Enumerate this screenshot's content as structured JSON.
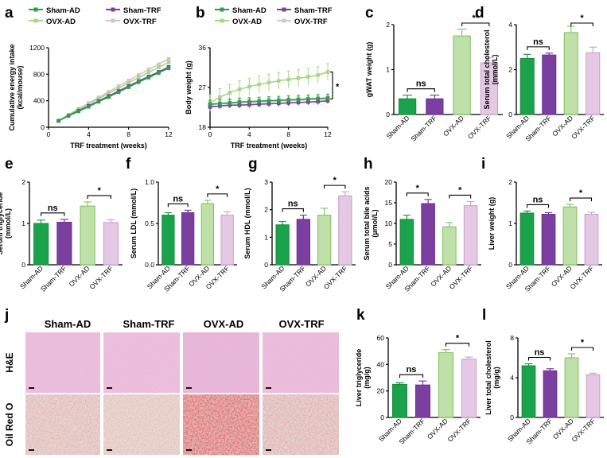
{
  "colors": {
    "sham_ad": "#1aa34a",
    "sham_trf": "#7b3fa0",
    "ovx_ad": "#bfe0a8",
    "ovx_trf": "#e4c8e4",
    "sham_ad_line": "#2e9e4a",
    "sham_trf_line": "#7b3fa0",
    "ovx_ad_line": "#a8d68a",
    "ovx_trf_line": "#d9c3c9"
  },
  "groups": [
    "Sham-AD",
    "Sham-TRF",
    "OVX-AD",
    "OVX-TRF"
  ],
  "legend": {
    "sham_ad": "Sham-AD",
    "sham_trf": "Sham-TRF",
    "ovx_ad": "OVX-AD",
    "ovx_trf": "OVX-TRF"
  },
  "chart_data": [
    {
      "panel": "a",
      "type": "line",
      "xlabel": "TRF treatment (weeks)",
      "ylabel": "Cumulative energy intake (kcal/mouse)",
      "xlim": [
        0,
        12
      ],
      "ylim": [
        0,
        1200
      ],
      "xticks": [
        0,
        4,
        8,
        12
      ],
      "yticks": [
        0,
        400,
        800,
        1200
      ],
      "x": [
        1,
        2,
        3,
        4,
        5,
        6,
        7,
        8,
        9,
        10,
        11,
        12
      ],
      "series": [
        {
          "name": "Sham-AD",
          "key": "sham_ad",
          "values": [
            95,
            170,
            240,
            310,
            385,
            455,
            530,
            605,
            680,
            750,
            820,
            890
          ]
        },
        {
          "name": "Sham-TRF",
          "key": "sham_trf",
          "values": [
            95,
            175,
            250,
            320,
            395,
            470,
            545,
            620,
            695,
            765,
            835,
            910
          ]
        },
        {
          "name": "OVX-AD",
          "key": "ovx_ad",
          "values": [
            100,
            185,
            270,
            350,
            430,
            510,
            590,
            670,
            750,
            830,
            905,
            980
          ]
        },
        {
          "name": "OVX-TRF",
          "key": "ovx_trf",
          "values": [
            100,
            190,
            280,
            365,
            450,
            535,
            620,
            705,
            790,
            870,
            950,
            1030
          ]
        }
      ]
    },
    {
      "panel": "b",
      "type": "line",
      "xlabel": "TRF treatment (weeks)",
      "ylabel": "Body weight (g)",
      "xlim": [
        0,
        12
      ],
      "ylim": [
        18,
        36
      ],
      "xticks": [
        0,
        4,
        8,
        12
      ],
      "yticks": [
        18,
        27,
        36
      ],
      "x": [
        0,
        1,
        2,
        3,
        4,
        5,
        6,
        7,
        8,
        9,
        10,
        11,
        12
      ],
      "series": [
        {
          "name": "Sham-AD",
          "key": "sham_ad",
          "values": [
            23.2,
            23.4,
            23.5,
            23.7,
            23.8,
            23.9,
            24.0,
            24.1,
            24.2,
            24.3,
            24.4,
            24.5,
            24.6
          ],
          "err": 0.9
        },
        {
          "name": "Sham-TRF",
          "key": "sham_trf",
          "values": [
            22.6,
            22.8,
            23.0,
            23.0,
            23.1,
            23.2,
            23.3,
            23.4,
            23.5,
            23.6,
            23.7,
            23.8,
            24.0
          ],
          "err": 0.7
        },
        {
          "name": "OVX-AD",
          "key": "ovx_ad",
          "values": [
            23.5,
            24.8,
            25.8,
            26.6,
            27.2,
            27.7,
            28.1,
            28.5,
            28.8,
            29.1,
            29.4,
            29.8,
            30.5
          ],
          "err": 1.9
        },
        {
          "name": "OVX-TRF",
          "key": "ovx_trf",
          "values": [
            23.0,
            23.2,
            23.4,
            23.5,
            23.6,
            23.7,
            23.8,
            23.9,
            24.0,
            24.1,
            24.2,
            24.3,
            24.4
          ],
          "err": 0.8
        }
      ],
      "annotation": "*"
    },
    {
      "panel": "c",
      "type": "bar",
      "ylabel": "gWAT weight (g)",
      "ylim": [
        0,
        2
      ],
      "yticks": [
        0,
        1,
        2
      ],
      "values": [
        0.35,
        0.35,
        1.75,
        1.15
      ],
      "errors": [
        0.08,
        0.08,
        0.15,
        0.12
      ],
      "sig": [
        {
          "pair": [
            0,
            1
          ],
          "label": "ns"
        },
        {
          "pair": [
            2,
            3
          ],
          "label": "**"
        }
      ]
    },
    {
      "panel": "d",
      "type": "bar",
      "ylabel": "Serum total cholesterol (mmol/L)",
      "ylim": [
        0,
        4
      ],
      "yticks": [
        0,
        2,
        4
      ],
      "values": [
        2.5,
        2.65,
        3.65,
        2.75
      ],
      "errors": [
        0.18,
        0.08,
        0.28,
        0.25
      ],
      "sig": [
        {
          "pair": [
            0,
            1
          ],
          "label": "ns"
        },
        {
          "pair": [
            2,
            3
          ],
          "label": "*"
        }
      ]
    },
    {
      "panel": "e",
      "type": "bar",
      "ylabel": "Serum triglyceride (mmol/L)",
      "ylim": [
        0,
        2
      ],
      "yticks": [
        0,
        1,
        2
      ],
      "values": [
        1.0,
        1.03,
        1.42,
        1.02
      ],
      "errors": [
        0.08,
        0.07,
        0.1,
        0.07
      ],
      "sig": [
        {
          "pair": [
            0,
            1
          ],
          "label": "ns"
        },
        {
          "pair": [
            2,
            3
          ],
          "label": "*"
        }
      ]
    },
    {
      "panel": "f",
      "type": "bar",
      "ylabel": "Serum LDL (mmol/L)",
      "ylim": [
        0,
        1.0
      ],
      "yticks": [
        0,
        0.5,
        1.0
      ],
      "values": [
        0.6,
        0.63,
        0.74,
        0.6
      ],
      "errors": [
        0.03,
        0.03,
        0.04,
        0.04
      ],
      "sig": [
        {
          "pair": [
            0,
            1
          ],
          "label": "ns"
        },
        {
          "pair": [
            2,
            3
          ],
          "label": "*"
        }
      ]
    },
    {
      "panel": "g",
      "type": "bar",
      "ylabel": "Serum HDL (mmol/L)",
      "ylim": [
        0,
        3
      ],
      "yticks": [
        0,
        1,
        2,
        3
      ],
      "values": [
        1.45,
        1.65,
        1.8,
        2.5
      ],
      "errors": [
        0.12,
        0.15,
        0.25,
        0.15
      ],
      "sig": [
        {
          "pair": [
            0,
            1
          ],
          "label": "ns"
        },
        {
          "pair": [
            2,
            3
          ],
          "label": "*"
        }
      ]
    },
    {
      "panel": "h",
      "type": "bar",
      "ylabel": "Serum total bile acids (µmol/L)",
      "ylim": [
        0,
        20
      ],
      "yticks": [
        0,
        5,
        10,
        15,
        20
      ],
      "values": [
        11.0,
        14.8,
        9.2,
        14.3
      ],
      "errors": [
        1.0,
        1.0,
        1.0,
        1.0
      ],
      "sig": [
        {
          "pair": [
            0,
            1
          ],
          "label": "*"
        },
        {
          "pair": [
            2,
            3
          ],
          "label": "*"
        }
      ]
    },
    {
      "panel": "i",
      "type": "bar",
      "ylabel": "Liver weight (g)",
      "ylim": [
        0,
        2
      ],
      "yticks": [
        0,
        1,
        2
      ],
      "values": [
        1.25,
        1.22,
        1.4,
        1.22
      ],
      "errors": [
        0.05,
        0.04,
        0.06,
        0.05
      ],
      "sig": [
        {
          "pair": [
            0,
            1
          ],
          "label": "ns"
        },
        {
          "pair": [
            2,
            3
          ],
          "label": "*"
        }
      ]
    },
    {
      "panel": "k",
      "type": "bar",
      "ylabel": "Liver triglyceride (mg/g)",
      "ylim": [
        0,
        60
      ],
      "yticks": [
        0,
        20,
        40,
        60
      ],
      "values": [
        25.0,
        24.5,
        49.0,
        44.0
      ],
      "errors": [
        1.2,
        3.0,
        2.2,
        1.5
      ],
      "sig": [
        {
          "pair": [
            0,
            1
          ],
          "label": "ns"
        },
        {
          "pair": [
            2,
            3
          ],
          "label": "*"
        }
      ]
    },
    {
      "panel": "l",
      "type": "bar",
      "ylabel": "Liver total cholesterol (mg/g)",
      "ylim": [
        0,
        8
      ],
      "yticks": [
        0,
        4,
        8
      ],
      "values": [
        5.2,
        4.7,
        6.0,
        4.3
      ],
      "errors": [
        0.2,
        0.2,
        0.4,
        0.15
      ],
      "sig": [
        {
          "pair": [
            0,
            1
          ],
          "label": "ns"
        },
        {
          "pair": [
            2,
            3
          ],
          "label": "*"
        }
      ]
    }
  ],
  "histology": {
    "panel": "j",
    "columns": [
      "Sham-AD",
      "Sham-TRF",
      "OVX-AD",
      "OVX-TRF"
    ],
    "rows": [
      "H&E",
      "Oil Red O"
    ]
  }
}
